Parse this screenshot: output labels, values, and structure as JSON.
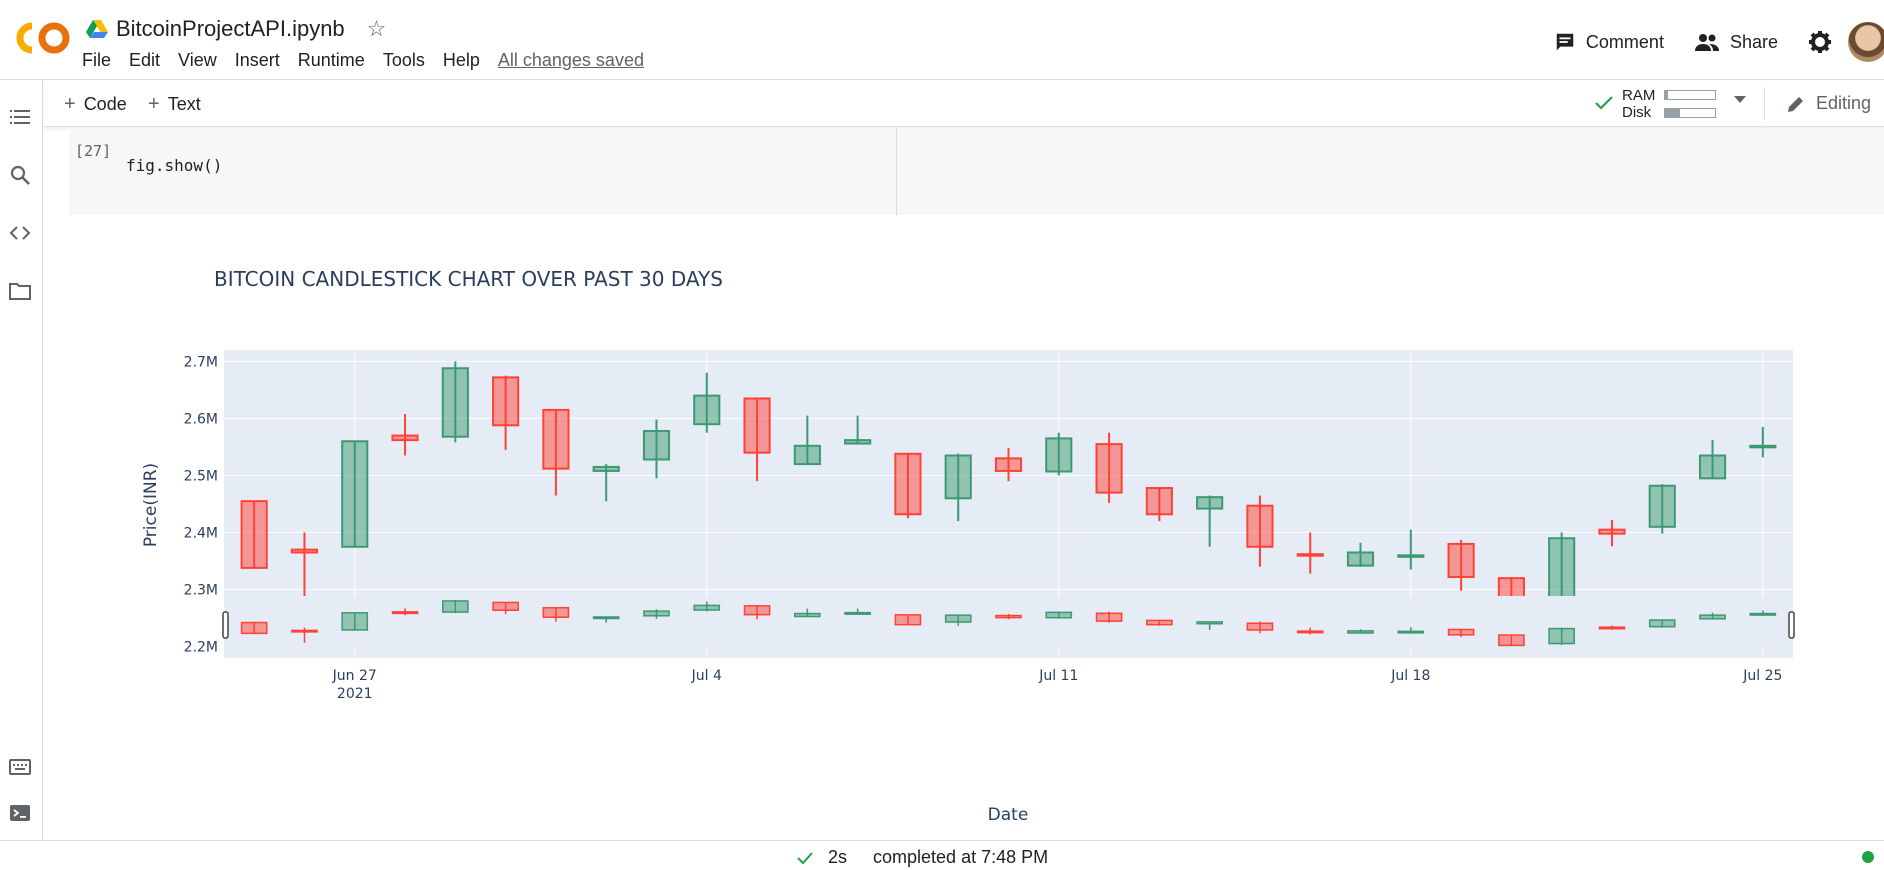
{
  "header": {
    "logo_text": "CO",
    "title": "BitcoinProjectAPI.ipynb",
    "menu": [
      "File",
      "Edit",
      "View",
      "Insert",
      "Runtime",
      "Tools",
      "Help"
    ],
    "save_status": "All changes saved",
    "comment_label": "Comment",
    "share_label": "Share"
  },
  "toolbar": {
    "add_code_label": "Code",
    "add_text_label": "Text",
    "ram_label": "RAM",
    "disk_label": "Disk",
    "ram_usage_fraction": 0.05,
    "disk_usage_fraction": 0.3,
    "mode_label": "Editing"
  },
  "cell": {
    "exec_count": "[27]",
    "code": "fig.show()"
  },
  "chart_data": {
    "type": "candlestick",
    "title": "BITCOIN CANDLESTICK CHART OVER PAST 30 DAYS",
    "xlabel": "Date",
    "ylabel": "Price(INR)",
    "x_ticks": [
      {
        "day": 2,
        "label": "Jun 27",
        "sublabel": "2021"
      },
      {
        "day": 9,
        "label": "Jul 4",
        "sublabel": ""
      },
      {
        "day": 16,
        "label": "Jul 11",
        "sublabel": ""
      },
      {
        "day": 23,
        "label": "Jul 18",
        "sublabel": ""
      },
      {
        "day": 30,
        "label": "Jul 25",
        "sublabel": ""
      }
    ],
    "y_ticks": [
      {
        "value": 2.2,
        "label": "2.2M"
      },
      {
        "value": 2.3,
        "label": "2.3M"
      },
      {
        "value": 2.4,
        "label": "2.4M"
      },
      {
        "value": 2.5,
        "label": "2.5M"
      },
      {
        "value": 2.6,
        "label": "2.6M"
      },
      {
        "value": 2.7,
        "label": "2.7M"
      }
    ],
    "ylim": [
      2.18,
      2.72
    ],
    "candles": [
      {
        "date": "Jun 25",
        "open": 2.455,
        "high": 2.455,
        "low": 2.338,
        "close": 2.338
      },
      {
        "date": "Jun 26",
        "open": 2.37,
        "high": 2.4,
        "low": 2.235,
        "close": 2.365
      },
      {
        "date": "Jun 27",
        "open": 2.375,
        "high": 2.56,
        "low": 2.375,
        "close": 2.56
      },
      {
        "date": "Jun 28",
        "open": 2.57,
        "high": 2.608,
        "low": 2.535,
        "close": 2.562
      },
      {
        "date": "Jun 29",
        "open": 2.568,
        "high": 2.7,
        "low": 2.558,
        "close": 2.688
      },
      {
        "date": "Jun 30",
        "open": 2.672,
        "high": 2.675,
        "low": 2.545,
        "close": 2.588
      },
      {
        "date": "Jul 1",
        "open": 2.615,
        "high": 2.615,
        "low": 2.465,
        "close": 2.512
      },
      {
        "date": "Jul 2",
        "open": 2.508,
        "high": 2.52,
        "low": 2.455,
        "close": 2.515
      },
      {
        "date": "Jul 3",
        "open": 2.528,
        "high": 2.598,
        "low": 2.495,
        "close": 2.578
      },
      {
        "date": "Jul 4",
        "open": 2.59,
        "high": 2.68,
        "low": 2.575,
        "close": 2.64
      },
      {
        "date": "Jul 5",
        "open": 2.635,
        "high": 2.635,
        "low": 2.49,
        "close": 2.54
      },
      {
        "date": "Jul 6",
        "open": 2.52,
        "high": 2.605,
        "low": 2.52,
        "close": 2.552
      },
      {
        "date": "Jul 7",
        "open": 2.556,
        "high": 2.605,
        "low": 2.556,
        "close": 2.562
      },
      {
        "date": "Jul 8",
        "open": 2.538,
        "high": 2.538,
        "low": 2.425,
        "close": 2.432
      },
      {
        "date": "Jul 9",
        "open": 2.46,
        "high": 2.538,
        "low": 2.42,
        "close": 2.535
      },
      {
        "date": "Jul 10",
        "open": 2.53,
        "high": 2.548,
        "low": 2.49,
        "close": 2.508
      },
      {
        "date": "Jul 11",
        "open": 2.507,
        "high": 2.575,
        "low": 2.5,
        "close": 2.565
      },
      {
        "date": "Jul 12",
        "open": 2.555,
        "high": 2.575,
        "low": 2.452,
        "close": 2.47
      },
      {
        "date": "Jul 13",
        "open": 2.478,
        "high": 2.478,
        "low": 2.42,
        "close": 2.432
      },
      {
        "date": "Jul 14",
        "open": 2.442,
        "high": 2.465,
        "low": 2.375,
        "close": 2.462
      },
      {
        "date": "Jul 15",
        "open": 2.447,
        "high": 2.465,
        "low": 2.34,
        "close": 2.375
      },
      {
        "date": "Jul 16",
        "open": 2.362,
        "high": 2.4,
        "low": 2.328,
        "close": 2.36
      },
      {
        "date": "Jul 17",
        "open": 2.342,
        "high": 2.382,
        "low": 2.34,
        "close": 2.365
      },
      {
        "date": "Jul 18",
        "open": 2.358,
        "high": 2.405,
        "low": 2.335,
        "close": 2.36
      },
      {
        "date": "Jul 19",
        "open": 2.38,
        "high": 2.387,
        "low": 2.298,
        "close": 2.322
      },
      {
        "date": "Jul 20",
        "open": 2.32,
        "high": 2.32,
        "low": 2.206,
        "close": 2.208
      },
      {
        "date": "Jul 21",
        "open": 2.228,
        "high": 2.4,
        "low": 2.212,
        "close": 2.39
      },
      {
        "date": "Jul 22",
        "open": 2.405,
        "high": 2.422,
        "low": 2.376,
        "close": 2.398
      },
      {
        "date": "Jul 23",
        "open": 2.41,
        "high": 2.485,
        "low": 2.398,
        "close": 2.482
      },
      {
        "date": "Jul 24",
        "open": 2.495,
        "high": 2.562,
        "low": 2.495,
        "close": 2.535
      },
      {
        "date": "Jul 25",
        "open": 2.552,
        "high": 2.585,
        "low": 2.532,
        "close": 2.552
      }
    ],
    "increasing_color": "#3d9970",
    "decreasing_color": "#ff4136",
    "rangeslider": true,
    "grid": true
  },
  "statusbar": {
    "duration": "2s",
    "message": "completed at 7:48 PM"
  }
}
